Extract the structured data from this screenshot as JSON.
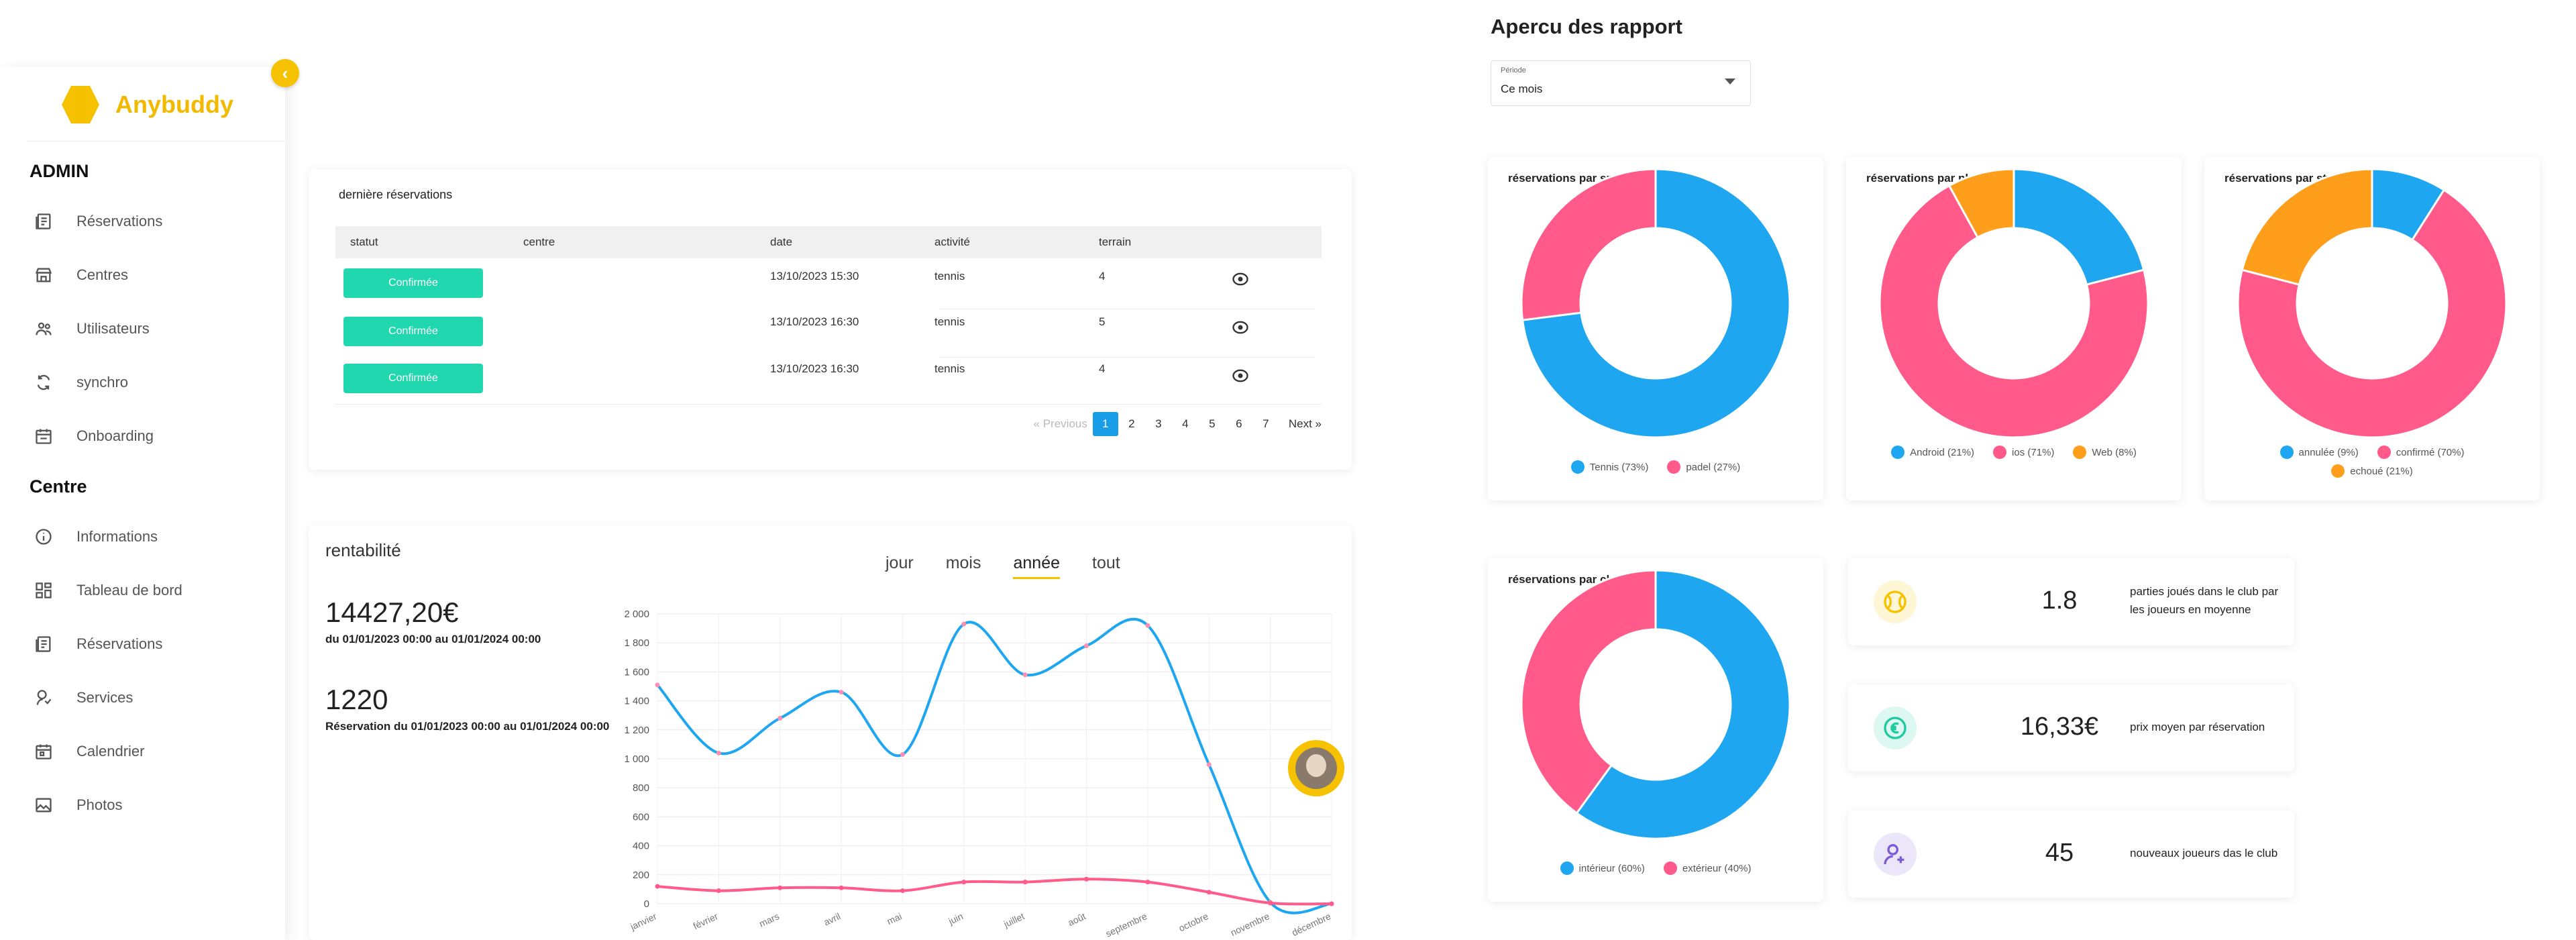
{
  "brand": {
    "name": "Anybuddy",
    "color": "#f2b900"
  },
  "sidebar": {
    "admin_title": "ADMIN",
    "admin_items": [
      {
        "label": "Réservations",
        "icon": "reservations-icon"
      },
      {
        "label": "Centres",
        "icon": "store-icon"
      },
      {
        "label": "Utilisateurs",
        "icon": "users-icon"
      },
      {
        "label": "synchro",
        "icon": "sync-icon"
      },
      {
        "label": "Onboarding",
        "icon": "calendar-check-icon"
      }
    ],
    "centre_title": "Centre",
    "centre_items": [
      {
        "label": "Informations",
        "icon": "info-icon"
      },
      {
        "label": "Tableau de bord",
        "icon": "dashboard-icon"
      },
      {
        "label": "Réservations",
        "icon": "reservations-icon"
      },
      {
        "label": "Services",
        "icon": "service-icon"
      },
      {
        "label": "Calendrier",
        "icon": "calendar-icon"
      },
      {
        "label": "Photos",
        "icon": "photo-icon"
      }
    ],
    "collapse_icon": "chevron-left-icon"
  },
  "reservations": {
    "title": "dernière réservations",
    "columns": [
      "statut",
      "centre",
      "date",
      "activité",
      "terrain"
    ],
    "rows": [
      {
        "status": "Confirmée",
        "centre": "",
        "date": "13/10/2023 15:30",
        "activity": "tennis",
        "court": "4"
      },
      {
        "status": "Confirmée",
        "centre": "",
        "date": "13/10/2023 16:30",
        "activity": "tennis",
        "court": "5"
      },
      {
        "status": "Confirmée",
        "centre": "",
        "date": "13/10/2023 16:30",
        "activity": "tennis",
        "court": "4"
      }
    ],
    "pagination": {
      "previous": "« Previous",
      "pages": [
        "1",
        "2",
        "3",
        "4",
        "5",
        "6",
        "7"
      ],
      "active": "1",
      "next": "Next »"
    },
    "status_color": "#20d7b0"
  },
  "rentabilite": {
    "title": "rentabilité",
    "amount": "14427,20€",
    "amount_period": "du 01/01/2023 00:00 au 01/01/2024 00:00",
    "count": "1220",
    "count_period": "Réservation du 01/01/2023 00:00 au 01/01/2024 00:00",
    "tabs": [
      "jour",
      "mois",
      "année",
      "tout"
    ],
    "active_tab": "année"
  },
  "chart_data": [
    {
      "type": "line",
      "x": [
        "janvier",
        "février",
        "mars",
        "avril",
        "mai",
        "juin",
        "juillet",
        "août",
        "septembre",
        "octobre",
        "novembre",
        "décembre"
      ],
      "yticks": [
        "0",
        "200",
        "400",
        "600",
        "800",
        "1 000",
        "1 200",
        "1 400",
        "1 600",
        "1 800",
        "2 000"
      ],
      "ylim": [
        0,
        2000
      ],
      "grid": true,
      "series": [
        {
          "color": "#1ea7f0",
          "values": [
            1510,
            1040,
            1280,
            1460,
            1030,
            1930,
            1580,
            1780,
            1920,
            960,
            10,
            0
          ]
        },
        {
          "color": "#ff5a8a",
          "values": [
            120,
            90,
            110,
            110,
            90,
            150,
            150,
            170,
            150,
            80,
            5,
            0
          ]
        }
      ]
    },
    {
      "type": "pie",
      "title": "réservations par sport",
      "labels": [
        "Tennis (73%)",
        "padel (27%)"
      ],
      "values": [
        73,
        27
      ],
      "colors": [
        "#1ea7f0",
        "#ff5a8a"
      ]
    },
    {
      "type": "pie",
      "title": "réservations par plateforme",
      "labels": [
        "Android (21%)",
        "ios (71%)",
        "Web (8%)"
      ],
      "values": [
        21,
        71,
        8
      ],
      "colors": [
        "#1ea7f0",
        "#ff5a8a",
        "#ff9e1b"
      ]
    },
    {
      "type": "pie",
      "title": "réservations par statut",
      "labels": [
        "annulée (9%)",
        "confirmé (70%)",
        "echoué (21%)"
      ],
      "values": [
        9,
        70,
        21
      ],
      "colors": [
        "#1ea7f0",
        "#ff5a8a",
        "#ff9e1b"
      ]
    },
    {
      "type": "pie",
      "title": "réservations par charactéristique",
      "labels": [
        "intérieur (60%)",
        "extérieur (40%)"
      ],
      "values": [
        60,
        40
      ],
      "colors": [
        "#1ea7f0",
        "#ff5a8a"
      ]
    }
  ],
  "report": {
    "title": "Apercu des rapport",
    "period_label": "Période",
    "period_value": "Ce mois"
  },
  "kpis": [
    {
      "value": "1.8",
      "label": "parties joués dans le club par les joueurs en moyenne",
      "icon": "tennis-ball-icon",
      "color": "#f6c200",
      "bg": "#fff6d6"
    },
    {
      "value": "16,33€",
      "label": "prix moyen par réservation",
      "icon": "euro-icon",
      "color": "#20c9a0",
      "bg": "#dcf8f0"
    },
    {
      "value": "45",
      "label": "nouveaux joueurs das le club",
      "icon": "user-plus-icon",
      "color": "#7c5cd6",
      "bg": "#ece6fb"
    }
  ]
}
